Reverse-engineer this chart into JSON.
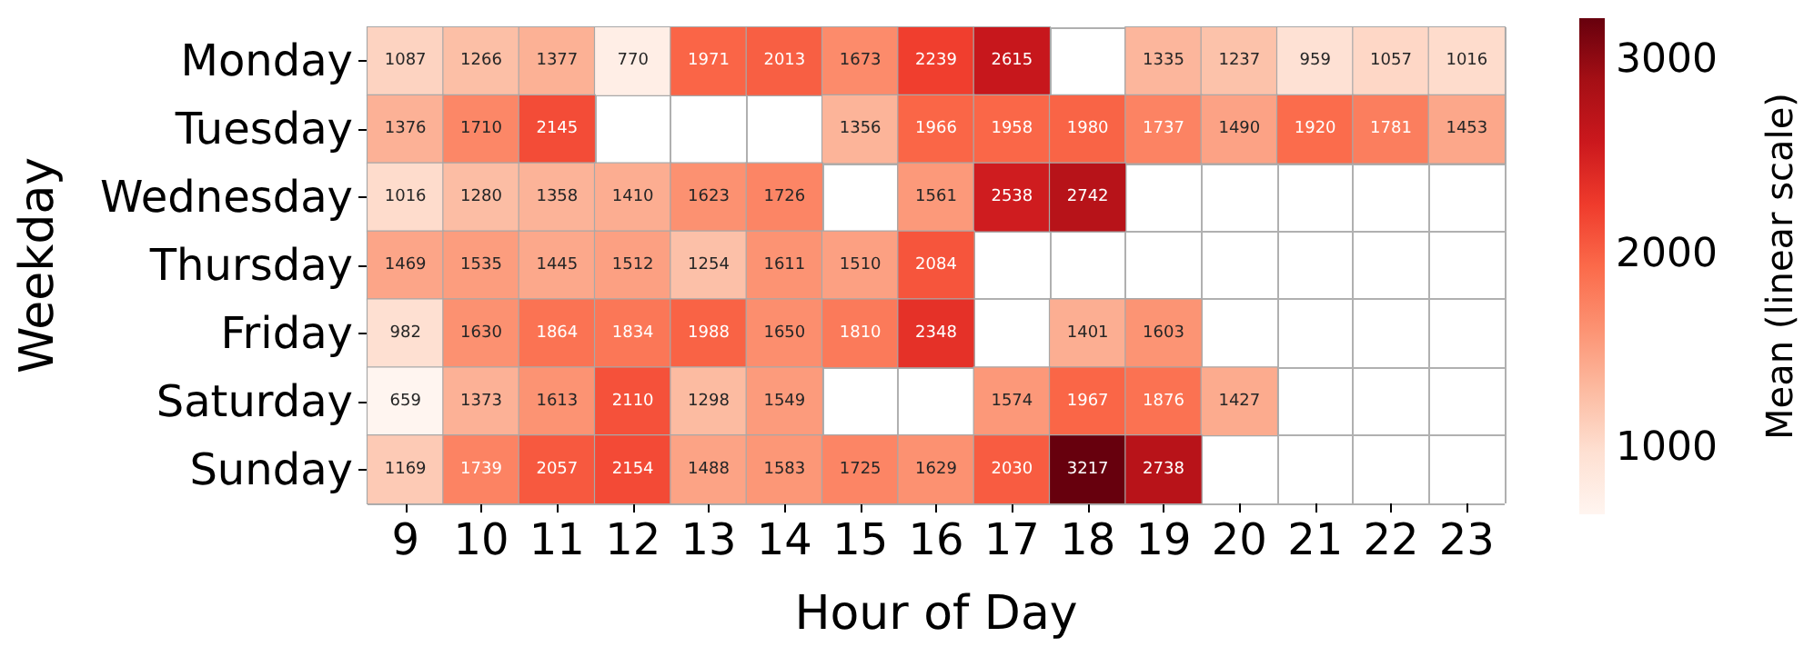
{
  "chart_data": {
    "type": "heatmap",
    "xlabel": "Hour of Day",
    "ylabel": "Weekday",
    "clabel": "Mean (linear scale)",
    "categories": [
      "9",
      "10",
      "11",
      "12",
      "13",
      "14",
      "15",
      "16",
      "17",
      "18",
      "19",
      "20",
      "21",
      "22",
      "23"
    ],
    "y_categories": [
      "Monday",
      "Tuesday",
      "Wednesday",
      "Thursday",
      "Friday",
      "Saturday",
      "Sunday"
    ],
    "cells": [
      [
        1087,
        1266,
        1377,
        770,
        1971,
        2013,
        1673,
        2239,
        2615,
        null,
        1335,
        1237,
        959,
        1057,
        1016
      ],
      [
        1376,
        1710,
        2145,
        null,
        null,
        null,
        1356,
        1966,
        1958,
        1980,
        1737,
        1490,
        1920,
        1781,
        1453
      ],
      [
        1016,
        1280,
        1358,
        1410,
        1623,
        1726,
        null,
        1561,
        2538,
        2742,
        null,
        null,
        null,
        null,
        null
      ],
      [
        1469,
        1535,
        1445,
        1512,
        1254,
        1611,
        1510,
        2084,
        null,
        null,
        null,
        null,
        null,
        null,
        null
      ],
      [
        982,
        1630,
        1864,
        1834,
        1988,
        1650,
        1810,
        2348,
        null,
        1401,
        1603,
        null,
        null,
        null,
        null
      ],
      [
        659,
        1373,
        1613,
        2110,
        1298,
        1549,
        null,
        null,
        1574,
        1967,
        1876,
        1427,
        null,
        null,
        null
      ],
      [
        1169,
        1739,
        2057,
        2154,
        1488,
        1583,
        1725,
        1629,
        2030,
        3217,
        2738,
        null,
        null,
        null,
        null
      ]
    ],
    "clim": [
      659,
      3217
    ],
    "cticks": [
      1000,
      2000,
      3000
    ],
    "data_labels": true,
    "grid": true
  }
}
